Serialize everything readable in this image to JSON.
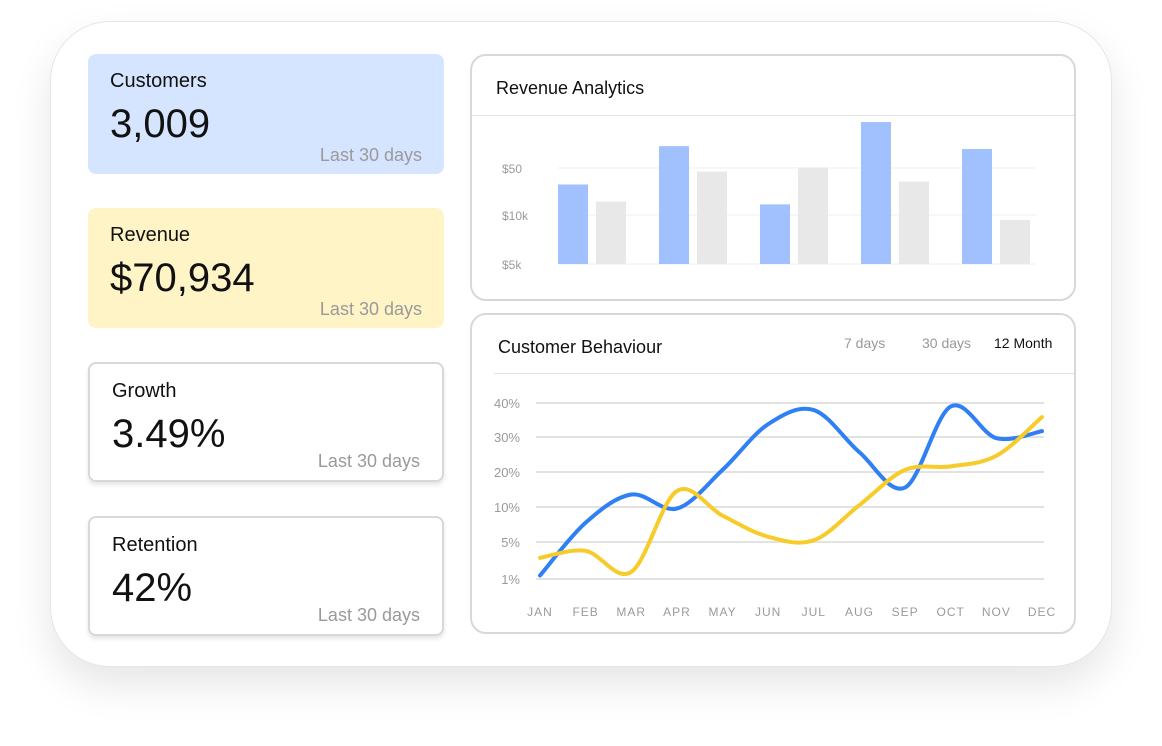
{
  "stats": [
    {
      "label": "Customers",
      "value": "3,009",
      "period": "Last 30 days"
    },
    {
      "label": "Revenue",
      "value": "$70,934",
      "period": "Last 30 days"
    },
    {
      "label": "Growth",
      "value": "3.49%",
      "period": "Last 30 days"
    },
    {
      "label": "Retention",
      "value": "42%",
      "period": "Last 30 days"
    }
  ],
  "colors": {
    "accent_blue": "#a0c1fd",
    "bar_gray": "#e8e8e8",
    "line_blue": "#2f7ff5",
    "line_yellow": "#f7cb2a",
    "card_blue": "#d6e5ff",
    "card_yellow": "#fff4c6"
  },
  "revenue_panel": {
    "title": "Revenue Analytics"
  },
  "behaviour_panel": {
    "title": "Customer Behaviour",
    "tabs": [
      "7 days",
      "30 days",
      "12 Month"
    ],
    "active_tab": "12 Month"
  },
  "chart_data": [
    {
      "type": "bar",
      "title": "Revenue Analytics",
      "y_tick_labels": [
        "$5k",
        "$10k",
        "$50"
      ],
      "series": [
        {
          "color": "#a0c1fd",
          "values": [
            0.56,
            0.83,
            0.42,
            1.0,
            0.81
          ]
        },
        {
          "color": "#e8e8e8",
          "values": [
            0.44,
            0.65,
            0.68,
            0.58,
            0.31
          ]
        }
      ],
      "grid": true
    },
    {
      "type": "line",
      "title": "Customer Behaviour",
      "categories": [
        "JAN",
        "FEB",
        "MAR",
        "APR",
        "MAY",
        "JUN",
        "JUL",
        "AUG",
        "SEP",
        "OCT",
        "NOV",
        "DEC"
      ],
      "y_tick_labels": [
        "1%",
        "5%",
        "10%",
        "20%",
        "30%",
        "40%"
      ],
      "series": [
        {
          "color": "#2f7ff5",
          "values": [
            0.1,
            1.6,
            2.4,
            2.0,
            3.1,
            4.4,
            4.8,
            3.6,
            2.6,
            4.9,
            4.0,
            4.2
          ]
        },
        {
          "color": "#f7cb2a",
          "values": [
            0.6,
            0.8,
            0.2,
            2.5,
            1.8,
            1.2,
            1.1,
            2.1,
            3.1,
            3.2,
            3.5,
            4.6
          ]
        }
      ],
      "grid": true
    }
  ]
}
